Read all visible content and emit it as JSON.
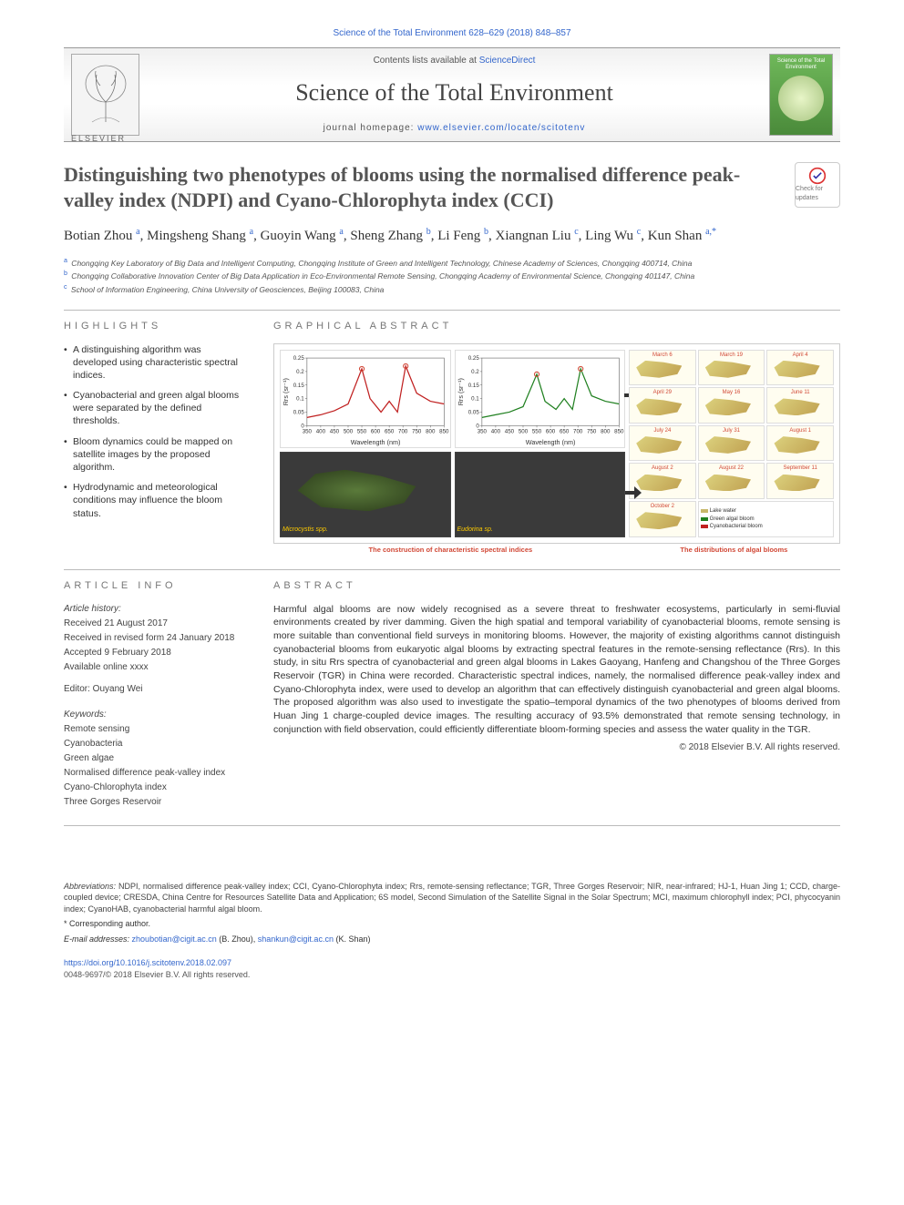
{
  "citation": "Science of the Total Environment 628–629 (2018) 848–857",
  "header": {
    "contents_prefix": "Contents lists available at ",
    "contents_link": "ScienceDirect",
    "journal": "Science of the Total Environment",
    "homepage_prefix": "journal homepage: ",
    "homepage_url": "www.elsevier.com/locate/scitotenv",
    "publisher_word": "ELSEVIER",
    "cover_title": "Science of the Total Environment"
  },
  "checkmark_label": "Check for updates",
  "title": "Distinguishing two phenotypes of blooms using the normalised difference peak-valley index (NDPI) and Cyano-Chlorophyta index (CCI)",
  "authors_html": "Botian Zhou <sup>a</sup>, Mingsheng Shang <sup>a</sup>, Guoyin Wang <sup>a</sup>, Sheng Zhang <sup>b</sup>, Li Feng <sup>b</sup>, Xiangnan Liu <sup>c</sup>, Ling Wu <sup>c</sup>, Kun Shan <sup>a,*</sup>",
  "affiliations": [
    {
      "sup": "a",
      "text": "Chongqing Key Laboratory of Big Data and Intelligent Computing, Chongqing Institute of Green and Intelligent Technology, Chinese Academy of Sciences, Chongqing 400714, China"
    },
    {
      "sup": "b",
      "text": "Chongqing Collaborative Innovation Center of Big Data Application in Eco-Environmental Remote Sensing, Chongqing Academy of Environmental Science, Chongqing 401147, China"
    },
    {
      "sup": "c",
      "text": "School of Information Engineering, China University of Geosciences, Beijing 100083, China"
    }
  ],
  "highlights": {
    "heading": "HIGHLIGHTS",
    "items": [
      "A distinguishing algorithm was developed using characteristic spectral indices.",
      "Cyanobacterial and green algal blooms were separated by the defined thresholds.",
      "Bloom dynamics could be mapped on satellite images by the proposed algorithm.",
      "Hydrodynamic and meteorological conditions may influence the bloom status."
    ]
  },
  "graphical": {
    "heading": "GRAPHICAL ABSTRACT",
    "spectra": {
      "ylabel": "Rrs (sr⁻¹)",
      "xlabel": "Wavelength (nm)",
      "xlim": [
        350,
        850
      ],
      "xticks": [
        350,
        400,
        450,
        500,
        550,
        600,
        650,
        700,
        750,
        800,
        850
      ],
      "ylim": [
        0,
        0.25
      ],
      "yticks": [
        0,
        0.05,
        0.1,
        0.15,
        0.2,
        0.25
      ],
      "series_left": {
        "color": "#c02020",
        "values": [
          [
            350,
            0.03
          ],
          [
            400,
            0.04
          ],
          [
            450,
            0.055
          ],
          [
            500,
            0.08
          ],
          [
            550,
            0.21
          ],
          [
            580,
            0.1
          ],
          [
            620,
            0.05
          ],
          [
            650,
            0.09
          ],
          [
            680,
            0.05
          ],
          [
            710,
            0.22
          ],
          [
            750,
            0.12
          ],
          [
            800,
            0.09
          ],
          [
            850,
            0.08
          ]
        ],
        "peak_markers": [
          [
            550,
            0.21
          ],
          [
            710,
            0.22
          ]
        ]
      },
      "series_right": {
        "color": "#208020",
        "values": [
          [
            350,
            0.03
          ],
          [
            400,
            0.04
          ],
          [
            450,
            0.05
          ],
          [
            500,
            0.07
          ],
          [
            550,
            0.19
          ],
          [
            580,
            0.09
          ],
          [
            620,
            0.06
          ],
          [
            650,
            0.1
          ],
          [
            680,
            0.06
          ],
          [
            710,
            0.21
          ],
          [
            750,
            0.11
          ],
          [
            800,
            0.09
          ],
          [
            850,
            0.08
          ]
        ],
        "peak_markers": [
          [
            550,
            0.19
          ],
          [
            710,
            0.21
          ]
        ]
      },
      "caption": "The construction of characteristic spectral indices",
      "photo_labels": [
        "Microcystis spp.",
        "Eudorina sp."
      ],
      "axis_fontsize": 6,
      "line_width": 1.2,
      "marker_color": "#d14836",
      "background": "#ffffff",
      "grid_color": "#cccccc"
    },
    "maps": {
      "dates": [
        "March 6",
        "March 19",
        "April 4",
        "April 29",
        "May 16",
        "June 11",
        "July 24",
        "July 31",
        "August 1",
        "August 2",
        "August 22",
        "September 11",
        "October 2"
      ],
      "legend": [
        {
          "label": "Lake water",
          "color": "#c8b86a"
        },
        {
          "label": "Green algal bloom",
          "color": "#208020"
        },
        {
          "label": "Cyanobacterial bloom",
          "color": "#c02020"
        }
      ],
      "caption": "The distributions of algal blooms"
    }
  },
  "article_info": {
    "heading": "ARTICLE INFO",
    "history_head": "Article history:",
    "history": [
      "Received 21 August 2017",
      "Received in revised form 24 January 2018",
      "Accepted 9 February 2018",
      "Available online xxxx"
    ],
    "editor_line": "Editor: Ouyang Wei",
    "keywords_head": "Keywords:",
    "keywords": [
      "Remote sensing",
      "Cyanobacteria",
      "Green algae",
      "Normalised difference peak-valley index",
      "Cyano-Chlorophyta index",
      "Three Gorges Reservoir"
    ]
  },
  "abstract": {
    "heading": "ABSTRACT",
    "text": "Harmful algal blooms are now widely recognised as a severe threat to freshwater ecosystems, particularly in semi-fluvial environments created by river damming. Given the high spatial and temporal variability of cyanobacterial blooms, remote sensing is more suitable than conventional field surveys in monitoring blooms. However, the majority of existing algorithms cannot distinguish cyanobacterial blooms from eukaryotic algal blooms by extracting spectral features in the remote-sensing reflectance (Rrs). In this study, in situ Rrs spectra of cyanobacterial and green algal blooms in Lakes Gaoyang, Hanfeng and Changshou of the Three Gorges Reservoir (TGR) in China were recorded. Characteristic spectral indices, namely, the normalised difference peak-valley index and Cyano-Chlorophyta index, were used to develop an algorithm that can effectively distinguish cyanobacterial and green algal blooms. The proposed algorithm was also used to investigate the spatio–temporal dynamics of the two phenotypes of blooms derived from Huan Jing 1 charge-coupled device images. The resulting accuracy of 93.5% demonstrated that remote sensing technology, in conjunction with field observation, could efficiently differentiate bloom-forming species and assess the water quality in the TGR.",
    "copyright": "© 2018 Elsevier B.V. All rights reserved."
  },
  "abbreviations": {
    "label": "Abbreviations:",
    "text": "NDPI, normalised difference peak-valley index; CCI, Cyano-Chlorophyta index; Rrs, remote-sensing reflectance; TGR, Three Gorges Reservoir; NIR, near-infrared; HJ-1, Huan Jing 1; CCD, charge-coupled device; CRESDA, China Centre for Resources Satellite Data and Application; 6S model, Second Simulation of the Satellite Signal in the Solar Spectrum; MCI, maximum chlorophyll index; PCI, phycocyanin index; CyanoHAB, cyanobacterial harmful algal bloom."
  },
  "corresponding": {
    "note": "* Corresponding author.",
    "email_label": "E-mail addresses:",
    "emails": [
      {
        "addr": "zhoubotian@cigit.ac.cn",
        "who": "(B. Zhou)"
      },
      {
        "addr": "shankun@cigit.ac.cn",
        "who": "(K. Shan)"
      }
    ]
  },
  "doi": "https://doi.org/10.1016/j.scitotenv.2018.02.097",
  "issn_line": "0048-9697/© 2018 Elsevier B.V. All rights reserved.",
  "colors": {
    "link": "#3366cc",
    "heading_gray": "#777777",
    "rule": "#bbbbbb",
    "red_caption": "#d14836"
  }
}
